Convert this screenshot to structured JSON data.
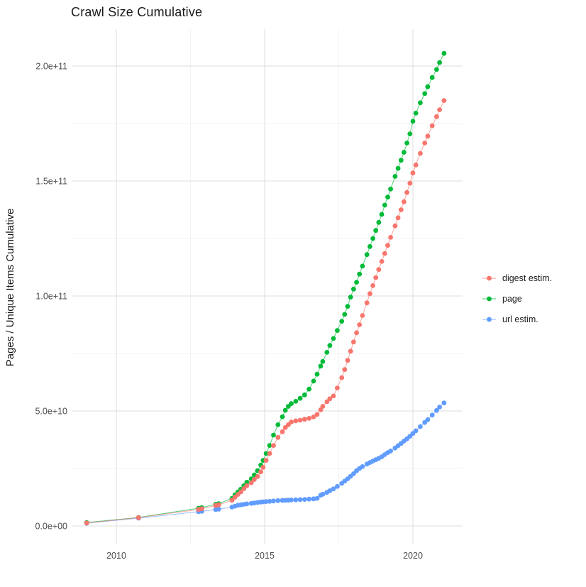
{
  "title": "Crawl Size Cumulative",
  "legend": {
    "items": [
      {
        "label": "digest estim.",
        "color": "#F8766D"
      },
      {
        "label": "page",
        "color": "#00BA38"
      },
      {
        "label": "url estim.",
        "color": "#619CFF"
      }
    ]
  },
  "chart_data": {
    "type": "scatter",
    "title": "Crawl Size Cumulative",
    "xlabel": "",
    "ylabel": "Pages / Unique Items Cumulative",
    "grid": true,
    "legend_position": "right",
    "point_radius_px": 3.4,
    "xlim": [
      2008.517,
      2021.675
    ],
    "ylim_e9": [
      -7.72,
      216.05
    ],
    "x_ticks": {
      "labels": [
        "2010",
        "2015",
        "2020"
      ],
      "values": [
        2010,
        2015,
        2020
      ],
      "minor": [
        2012.5,
        2017.5
      ]
    },
    "y_ticks": {
      "labels": [
        "0.0e+00",
        "5.0e+10",
        "1.0e+11",
        "1.5e+11",
        "2.0e+11"
      ],
      "values_e9": [
        0,
        50,
        100,
        150,
        200
      ],
      "minor_e9": [
        25,
        75,
        125,
        175
      ]
    },
    "x": [
      2009.0,
      2010.75,
      2012.77,
      2012.88,
      2013.35,
      2013.45,
      2013.9,
      2014.0,
      2014.1,
      2014.2,
      2014.3,
      2014.4,
      2014.55,
      2014.65,
      2014.76,
      2014.87,
      2014.95,
      2015.05,
      2015.17,
      2015.3,
      2015.45,
      2015.6,
      2015.7,
      2015.8,
      2015.9,
      2016.05,
      2016.2,
      2016.35,
      2016.5,
      2016.65,
      2016.77,
      2016.89,
      2016.96,
      2017.1,
      2017.2,
      2017.32,
      2017.45,
      2017.6,
      2017.7,
      2017.8,
      2017.9,
      2018.0,
      2018.1,
      2018.2,
      2018.3,
      2018.45,
      2018.55,
      2018.65,
      2018.75,
      2018.85,
      2018.95,
      2019.05,
      2019.15,
      2019.25,
      2019.4,
      2019.5,
      2019.6,
      2019.7,
      2019.8,
      2019.9,
      2020.0,
      2020.1,
      2020.25,
      2020.4,
      2020.5,
      2020.65,
      2020.8,
      2020.9,
      2021.05
    ],
    "series": [
      {
        "name": "digest estim.",
        "color": "#F8766D",
        "values_e9": [
          1.3,
          3.6,
          7.2,
          7.5,
          8.9,
          9.2,
          11.2,
          12.5,
          13.7,
          14.8,
          16.2,
          17.5,
          18.8,
          20.2,
          21.5,
          23.5,
          25.5,
          28.5,
          31.5,
          35.0,
          38.5,
          41.0,
          42.8,
          44.0,
          45.2,
          45.7,
          46.0,
          46.4,
          46.8,
          47.4,
          48.5,
          50.5,
          52.0,
          54.0,
          55.3,
          56.5,
          60.0,
          64.5,
          68.0,
          72.0,
          76.0,
          80.0,
          84.0,
          87.5,
          91.5,
          97.0,
          101.0,
          104.5,
          108.0,
          111.5,
          115.0,
          118.5,
          122.0,
          125.5,
          130.5,
          134.0,
          137.5,
          141.0,
          145.0,
          149.0,
          153.5,
          157.0,
          162.0,
          166.5,
          169.5,
          174.0,
          178.0,
          181.0,
          185.0
        ]
      },
      {
        "name": "page",
        "color": "#00BA38",
        "values_e9": [
          1.5,
          3.7,
          7.7,
          8.0,
          9.4,
          9.7,
          12.0,
          13.5,
          14.8,
          16.0,
          17.5,
          19.0,
          20.5,
          22.2,
          24.0,
          26.5,
          28.5,
          31.5,
          35.0,
          39.5,
          44.0,
          47.5,
          50.3,
          52.0,
          53.2,
          54.2,
          55.5,
          57.0,
          59.5,
          63.0,
          66.0,
          69.5,
          71.5,
          75.5,
          78.5,
          81.5,
          85.0,
          89.0,
          92.0,
          95.5,
          99.5,
          103.0,
          106.0,
          109.5,
          113.0,
          118.0,
          121.5,
          125.0,
          128.5,
          132.0,
          135.5,
          139.5,
          143.0,
          146.5,
          152.0,
          155.5,
          159.0,
          162.5,
          166.5,
          170.5,
          176.0,
          179.5,
          184.0,
          188.0,
          191.0,
          195.0,
          198.5,
          201.5,
          205.5
        ]
      },
      {
        "name": "url estim.",
        "color": "#619CFF",
        "values_e9": [
          1.2,
          3.4,
          6.2,
          6.4,
          7.1,
          7.3,
          8.2,
          8.6,
          9.0,
          9.2,
          9.4,
          9.6,
          9.8,
          10.0,
          10.2,
          10.4,
          10.5,
          10.6,
          10.7,
          10.85,
          11.0,
          11.1,
          11.15,
          11.2,
          11.3,
          11.35,
          11.45,
          11.55,
          11.65,
          11.8,
          12.0,
          13.4,
          13.8,
          14.6,
          15.3,
          16.1,
          17.2,
          18.5,
          19.5,
          20.5,
          21.6,
          22.7,
          24.0,
          25.0,
          25.8,
          26.9,
          27.6,
          28.2,
          28.8,
          29.4,
          30.1,
          31.0,
          31.9,
          32.6,
          33.9,
          34.9,
          35.9,
          36.9,
          37.9,
          39.0,
          40.2,
          41.4,
          43.2,
          45.0,
          46.2,
          48.2,
          50.2,
          51.7,
          53.5
        ]
      }
    ]
  }
}
